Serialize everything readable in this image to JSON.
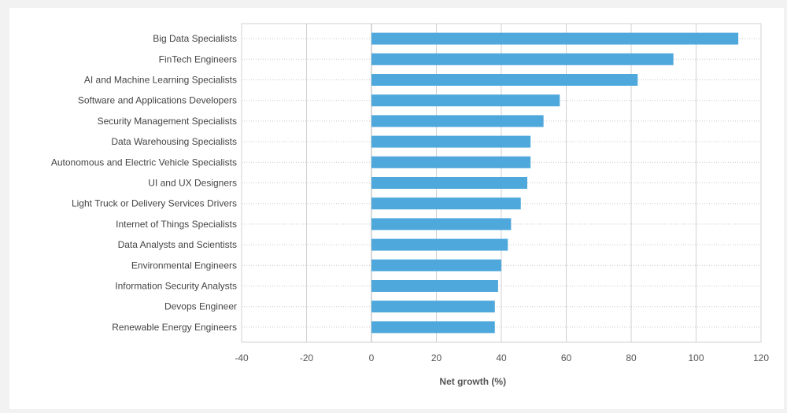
{
  "chart_data": {
    "type": "bar",
    "orientation": "horizontal",
    "title": "",
    "xlabel": "Net growth (%)",
    "ylabel": "",
    "xlim": [
      -40,
      120
    ],
    "xticks": [
      -40,
      -20,
      0,
      20,
      40,
      60,
      80,
      100,
      120
    ],
    "grid": "dotted-horizontal-and-vertical",
    "bar_color": "#4ea8dc",
    "categories": [
      "Big Data Specialists",
      "FinTech Engineers",
      "AI and Machine Learning Specialists",
      "Software and Applications Developers",
      "Security Management Specialists",
      "Data Warehousing Specialists",
      "Autonomous and Electric Vehicle Specialists",
      "UI and UX Designers",
      "Light Truck or Delivery Services Drivers",
      "Internet of Things Specialists",
      "Data Analysts and Scientists",
      "Environmental Engineers",
      "Information Security Analysts",
      "Devops Engineer",
      "Renewable Energy Engineers"
    ],
    "values": [
      113,
      93,
      82,
      58,
      53,
      49,
      49,
      48,
      46,
      43,
      42,
      40,
      39,
      38,
      38
    ]
  }
}
